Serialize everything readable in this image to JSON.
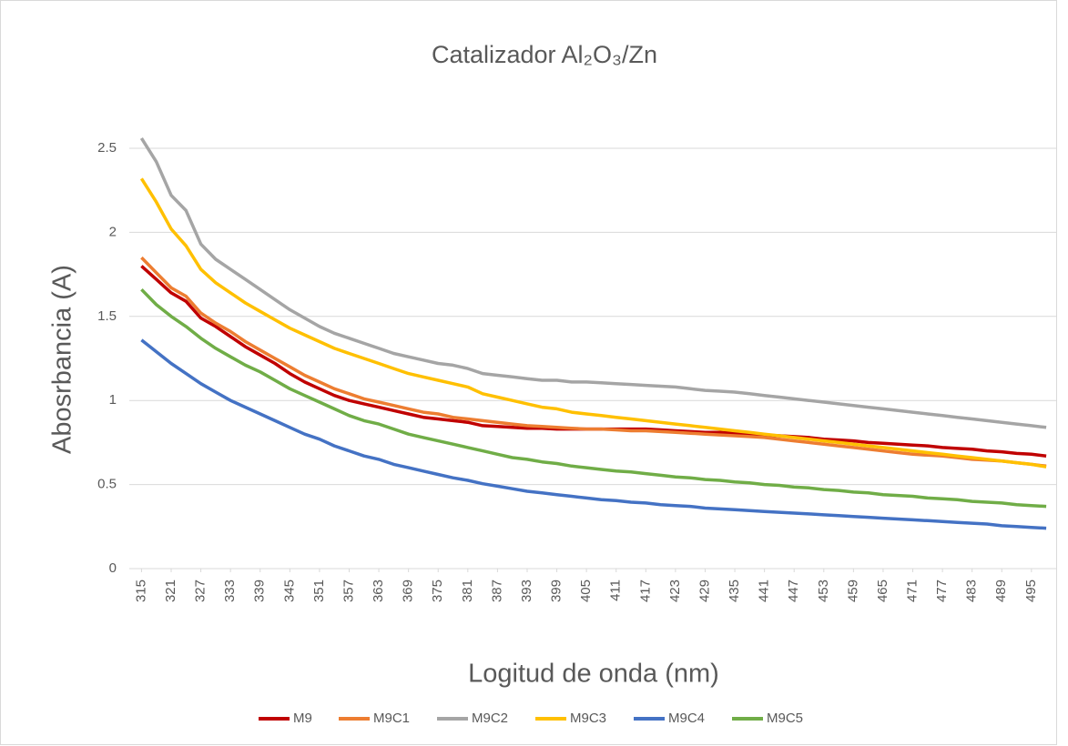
{
  "chart_data": {
    "type": "line",
    "title": "Catalizador Al₂O₃/Zn",
    "x_label": "Logitud de onda (nm)",
    "y_label": "Abosrbancia (A)",
    "x": [
      315,
      318,
      321,
      324,
      327,
      330,
      333,
      336,
      339,
      342,
      345,
      348,
      351,
      354,
      357,
      360,
      363,
      366,
      369,
      372,
      375,
      378,
      381,
      384,
      387,
      390,
      393,
      396,
      399,
      402,
      405,
      408,
      411,
      414,
      417,
      420,
      423,
      426,
      429,
      432,
      435,
      438,
      441,
      444,
      447,
      450,
      453,
      456,
      459,
      462,
      465,
      468,
      471,
      474,
      477,
      480,
      483,
      486,
      489,
      492,
      495,
      498
    ],
    "xlim": [
      314,
      500
    ],
    "xticks": [
      315,
      321,
      327,
      333,
      339,
      345,
      351,
      357,
      363,
      369,
      375,
      381,
      387,
      393,
      399,
      405,
      411,
      417,
      423,
      429,
      435,
      441,
      447,
      453,
      459,
      465,
      471,
      477,
      483,
      489,
      495
    ],
    "ylim": [
      0,
      2.5
    ],
    "yticks": [
      0,
      0.5,
      1,
      1.5,
      2,
      2.5
    ],
    "grid": true,
    "legend": "bottom",
    "series": [
      {
        "name": "M9",
        "color": "#c00000",
        "values": [
          1.8,
          1.72,
          1.64,
          1.59,
          1.49,
          1.44,
          1.38,
          1.32,
          1.27,
          1.22,
          1.16,
          1.11,
          1.07,
          1.03,
          1.0,
          0.98,
          0.96,
          0.94,
          0.92,
          0.9,
          0.89,
          0.88,
          0.87,
          0.85,
          0.845,
          0.84,
          0.835,
          0.835,
          0.83,
          0.83,
          0.83,
          0.83,
          0.83,
          0.83,
          0.83,
          0.825,
          0.82,
          0.815,
          0.81,
          0.81,
          0.805,
          0.8,
          0.795,
          0.79,
          0.785,
          0.78,
          0.77,
          0.765,
          0.76,
          0.75,
          0.745,
          0.74,
          0.735,
          0.73,
          0.72,
          0.715,
          0.71,
          0.7,
          0.695,
          0.685,
          0.68,
          0.67
        ]
      },
      {
        "name": "M9C1",
        "color": "#ed7d31",
        "values": [
          1.85,
          1.76,
          1.67,
          1.62,
          1.52,
          1.46,
          1.41,
          1.35,
          1.3,
          1.25,
          1.2,
          1.15,
          1.11,
          1.07,
          1.04,
          1.01,
          0.99,
          0.97,
          0.95,
          0.93,
          0.92,
          0.9,
          0.89,
          0.88,
          0.87,
          0.86,
          0.85,
          0.845,
          0.84,
          0.835,
          0.83,
          0.83,
          0.825,
          0.82,
          0.82,
          0.815,
          0.81,
          0.805,
          0.8,
          0.795,
          0.79,
          0.785,
          0.78,
          0.77,
          0.76,
          0.75,
          0.74,
          0.73,
          0.72,
          0.71,
          0.7,
          0.69,
          0.68,
          0.675,
          0.67,
          0.66,
          0.65,
          0.645,
          0.64,
          0.63,
          0.62,
          0.61
        ]
      },
      {
        "name": "M9C2",
        "color": "#a5a5a5",
        "values": [
          2.56,
          2.42,
          2.22,
          2.13,
          1.93,
          1.84,
          1.78,
          1.72,
          1.66,
          1.6,
          1.54,
          1.49,
          1.44,
          1.4,
          1.37,
          1.34,
          1.31,
          1.28,
          1.26,
          1.24,
          1.22,
          1.21,
          1.19,
          1.16,
          1.15,
          1.14,
          1.13,
          1.12,
          1.12,
          1.11,
          1.11,
          1.105,
          1.1,
          1.095,
          1.09,
          1.085,
          1.08,
          1.07,
          1.06,
          1.055,
          1.05,
          1.04,
          1.03,
          1.02,
          1.01,
          1.0,
          0.99,
          0.98,
          0.97,
          0.96,
          0.95,
          0.94,
          0.93,
          0.92,
          0.91,
          0.9,
          0.89,
          0.88,
          0.87,
          0.86,
          0.85,
          0.84
        ]
      },
      {
        "name": "M9C3",
        "color": "#ffc000",
        "values": [
          2.32,
          2.18,
          2.02,
          1.92,
          1.78,
          1.7,
          1.64,
          1.58,
          1.53,
          1.48,
          1.43,
          1.39,
          1.35,
          1.31,
          1.28,
          1.25,
          1.22,
          1.19,
          1.16,
          1.14,
          1.12,
          1.1,
          1.08,
          1.04,
          1.02,
          1.0,
          0.98,
          0.96,
          0.95,
          0.93,
          0.92,
          0.91,
          0.9,
          0.89,
          0.88,
          0.87,
          0.86,
          0.85,
          0.84,
          0.83,
          0.82,
          0.81,
          0.8,
          0.79,
          0.78,
          0.77,
          0.76,
          0.75,
          0.74,
          0.73,
          0.72,
          0.71,
          0.7,
          0.69,
          0.68,
          0.67,
          0.66,
          0.65,
          0.64,
          0.63,
          0.62,
          0.605
        ]
      },
      {
        "name": "M9C4",
        "color": "#4472c4",
        "values": [
          1.36,
          1.29,
          1.22,
          1.16,
          1.1,
          1.05,
          1.0,
          0.96,
          0.92,
          0.88,
          0.84,
          0.8,
          0.77,
          0.73,
          0.7,
          0.67,
          0.65,
          0.62,
          0.6,
          0.58,
          0.56,
          0.54,
          0.525,
          0.505,
          0.49,
          0.475,
          0.46,
          0.45,
          0.44,
          0.43,
          0.42,
          0.41,
          0.405,
          0.395,
          0.39,
          0.38,
          0.375,
          0.37,
          0.36,
          0.355,
          0.35,
          0.345,
          0.34,
          0.335,
          0.33,
          0.325,
          0.32,
          0.315,
          0.31,
          0.305,
          0.3,
          0.295,
          0.29,
          0.285,
          0.28,
          0.275,
          0.27,
          0.265,
          0.255,
          0.25,
          0.245,
          0.24
        ]
      },
      {
        "name": "M9C5",
        "color": "#70ad47",
        "values": [
          1.66,
          1.57,
          1.5,
          1.44,
          1.37,
          1.31,
          1.26,
          1.21,
          1.17,
          1.12,
          1.07,
          1.03,
          0.99,
          0.95,
          0.91,
          0.88,
          0.86,
          0.83,
          0.8,
          0.78,
          0.76,
          0.74,
          0.72,
          0.7,
          0.68,
          0.66,
          0.65,
          0.635,
          0.625,
          0.61,
          0.6,
          0.59,
          0.58,
          0.575,
          0.565,
          0.555,
          0.545,
          0.54,
          0.53,
          0.525,
          0.515,
          0.51,
          0.5,
          0.495,
          0.485,
          0.48,
          0.47,
          0.465,
          0.455,
          0.45,
          0.44,
          0.435,
          0.43,
          0.42,
          0.415,
          0.41,
          0.4,
          0.395,
          0.39,
          0.38,
          0.375,
          0.37
        ]
      }
    ]
  }
}
